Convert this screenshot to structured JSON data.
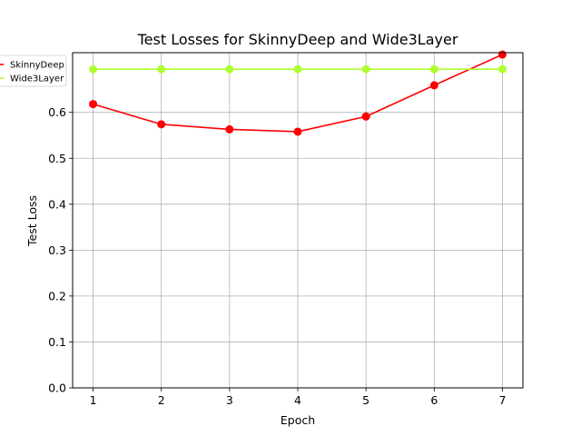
{
  "chart_data": {
    "type": "line",
    "title": "Test Losses for SkinnyDeep and Wide3Layer",
    "xlabel": "Epoch",
    "ylabel": "Test Loss",
    "x": [
      1,
      2,
      3,
      4,
      5,
      6,
      7
    ],
    "xticks": [
      "1",
      "2",
      "3",
      "4",
      "5",
      "6",
      "7"
    ],
    "yticks": [
      "0.0",
      "0.1",
      "0.2",
      "0.3",
      "0.4",
      "0.5",
      "0.6"
    ],
    "xlim": [
      0.7,
      7.3
    ],
    "ylim": [
      0.0,
      0.73
    ],
    "grid": true,
    "legend_position": "top-left",
    "series": [
      {
        "name": "SkinnyDeep",
        "color": "#ff0000",
        "values": [
          0.618,
          0.574,
          0.563,
          0.558,
          0.591,
          0.659,
          0.726
        ]
      },
      {
        "name": "Wide3Layer",
        "color": "#adff2f",
        "values": [
          0.694,
          0.694,
          0.694,
          0.694,
          0.694,
          0.694,
          0.694
        ]
      }
    ]
  }
}
